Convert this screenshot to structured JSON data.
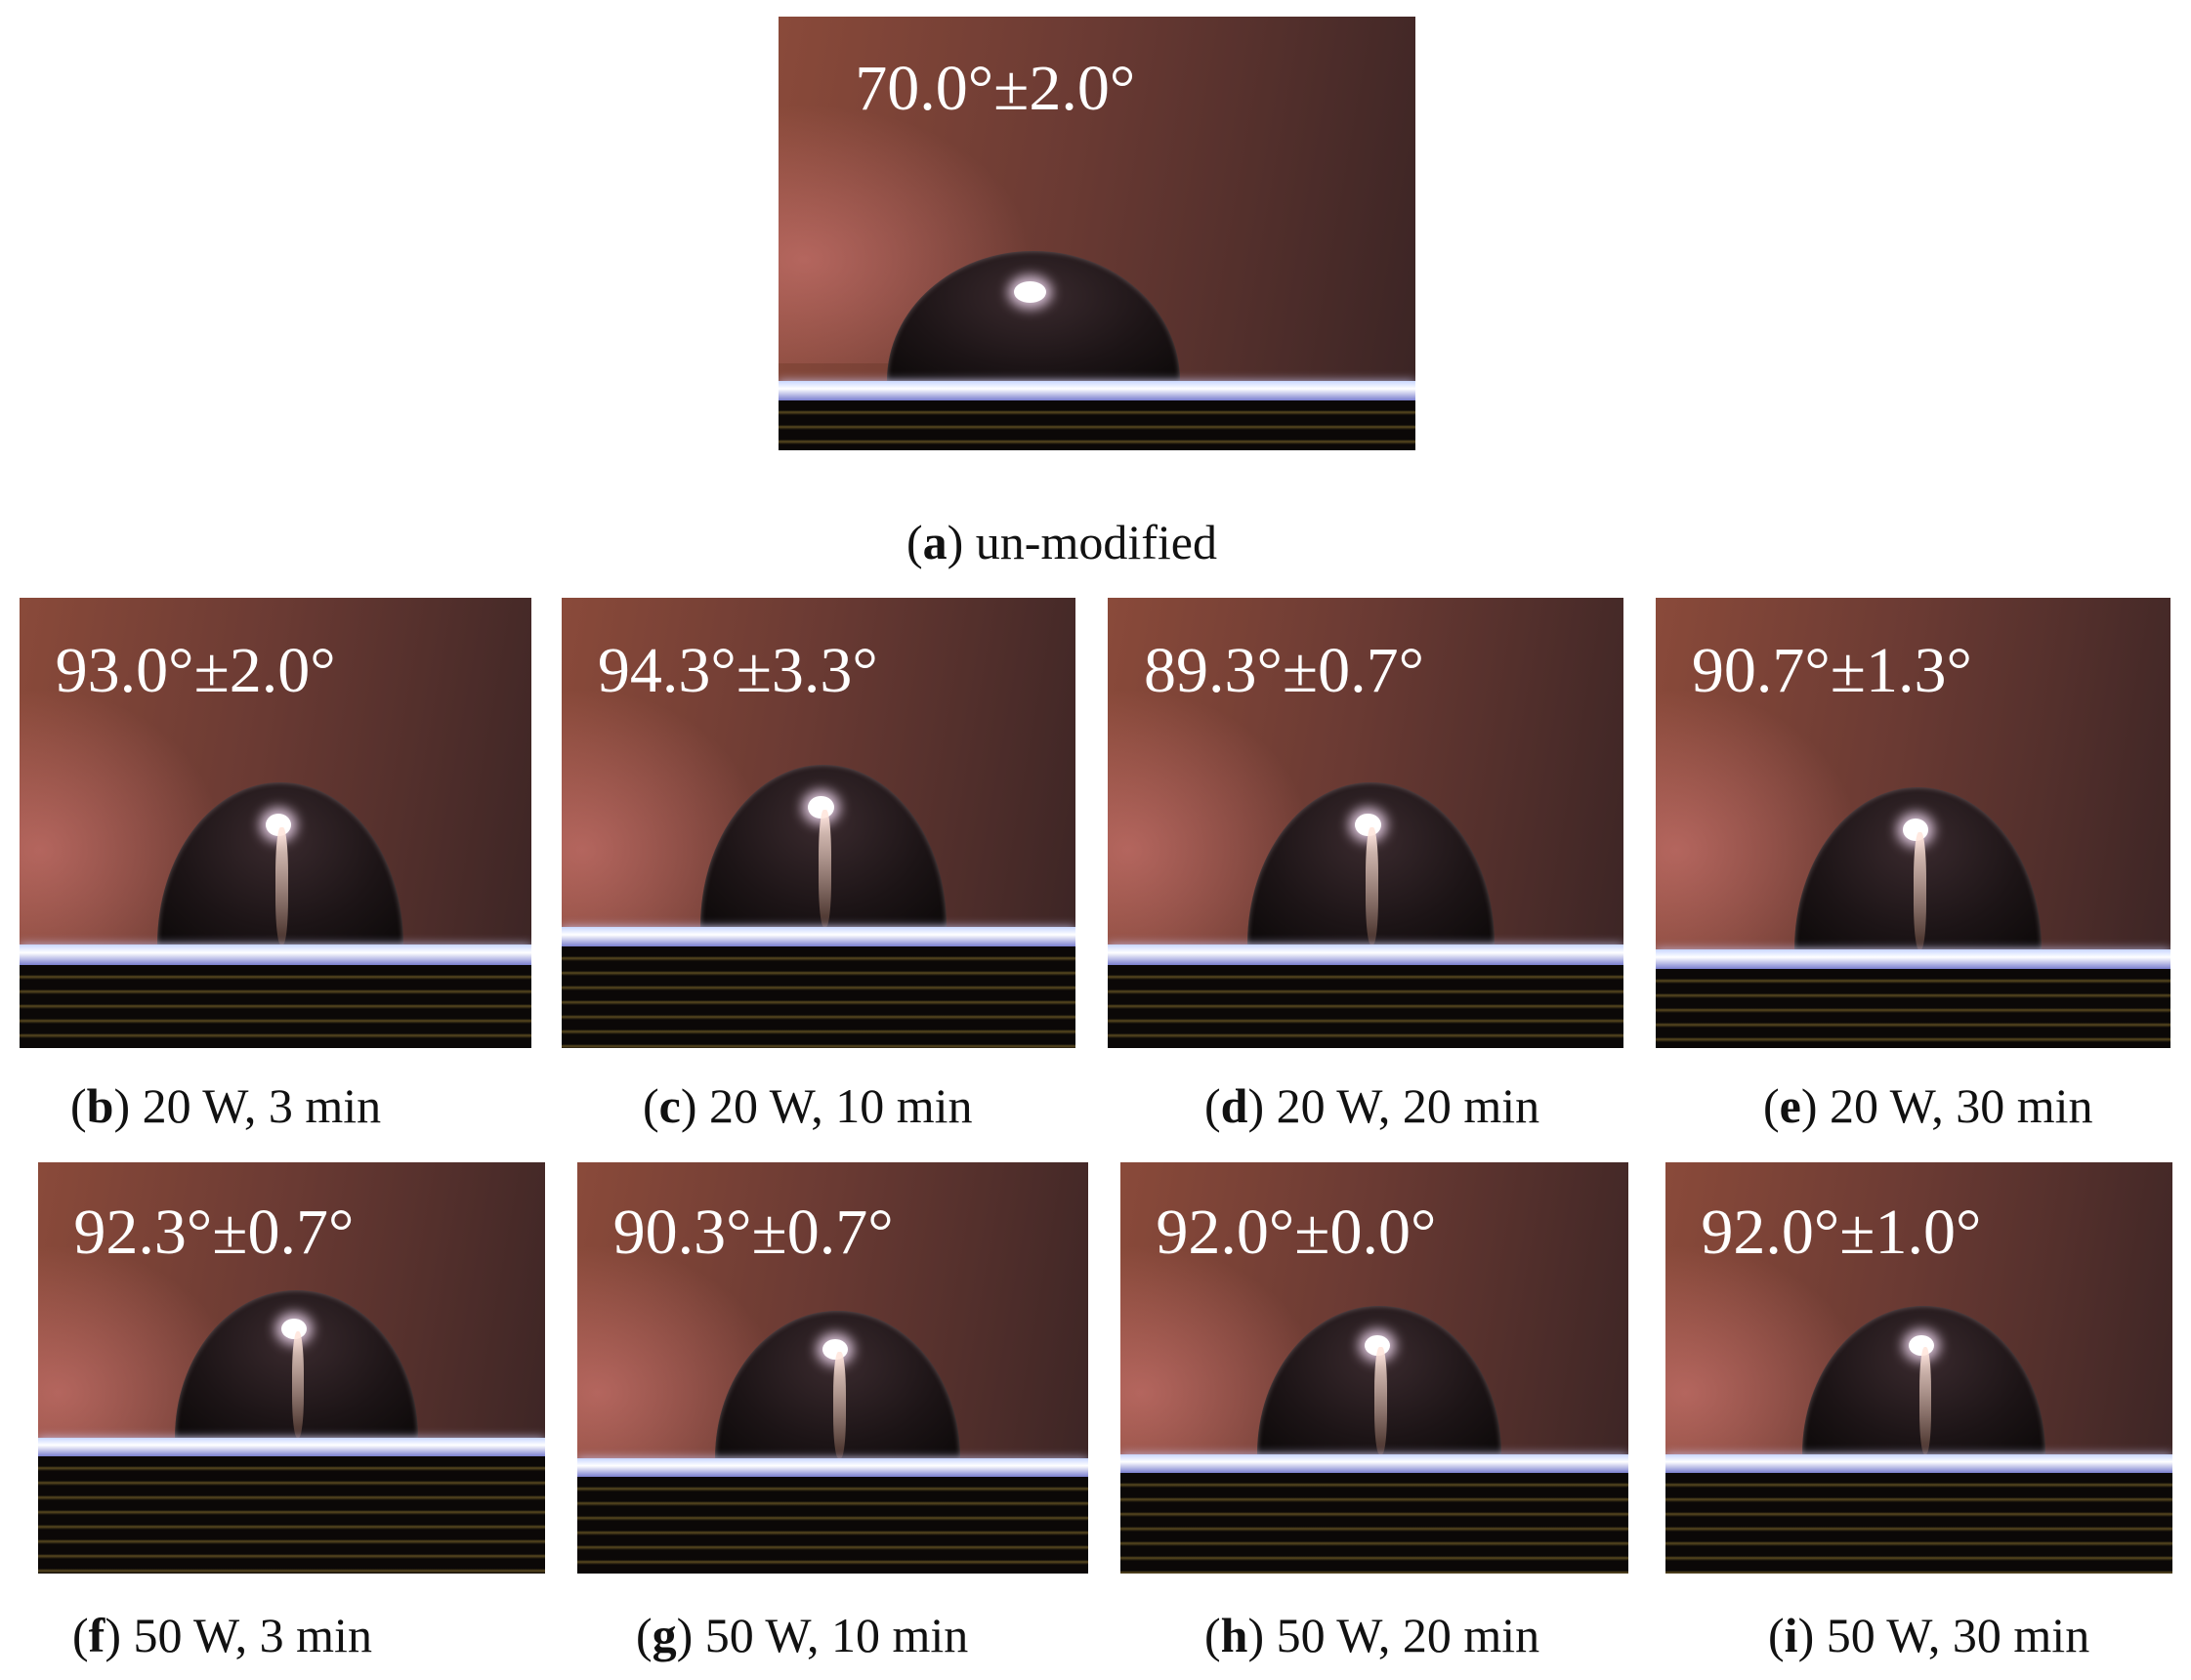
{
  "panels": [
    {
      "angle": "70.0°±2.0°",
      "caption_parts": [
        "(",
        "a",
        ") un-modified"
      ]
    },
    {
      "angle": "93.0°±2.0°",
      "caption_parts": [
        "(",
        "b",
        ") 20 W, 3 min"
      ]
    },
    {
      "angle": "94.3°±3.3°",
      "caption_parts": [
        "(",
        "c",
        ") 20 W, 10 min"
      ]
    },
    {
      "angle": "89.3°±0.7°",
      "caption_parts": [
        "(",
        "d",
        ") 20 W, 20 min"
      ]
    },
    {
      "angle": "90.7°±1.3°",
      "caption_parts": [
        "(",
        "e",
        ") 20 W, 30 min"
      ]
    },
    {
      "angle": "92.3°±0.7°",
      "caption_parts": [
        "(",
        "f",
        ") 50 W, 3 min"
      ]
    },
    {
      "angle": "90.3°±0.7°",
      "caption_parts": [
        "(",
        "g",
        ") 50 W, 10 min"
      ]
    },
    {
      "angle": "92.0°±0.0°",
      "caption_parts": [
        "(",
        "h",
        ") 50 W, 20 min"
      ]
    },
    {
      "angle": "92.0°±1.0°",
      "caption_parts": [
        "(",
        "i",
        ") 50 W, 30 min"
      ]
    }
  ]
}
